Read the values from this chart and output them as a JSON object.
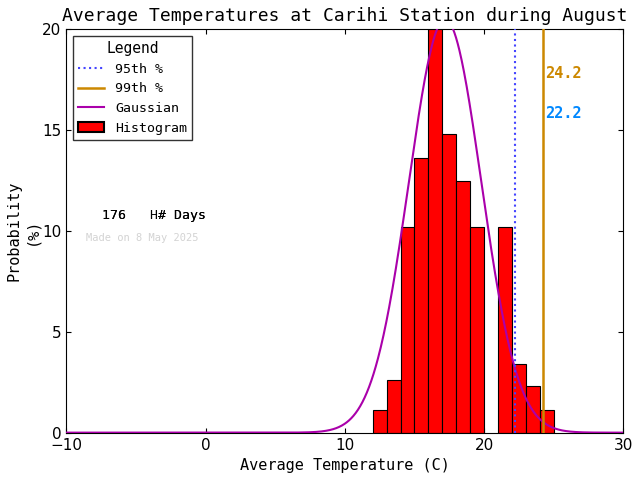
{
  "title": "Average Temperatures at Carihi Station during August",
  "xlabel": "Average Temperature (C)",
  "ylabel": "Probability\n(%)",
  "xlim": [
    -10,
    30
  ],
  "ylim": [
    0,
    20
  ],
  "xticks": [
    -10,
    0,
    10,
    20,
    30
  ],
  "yticks": [
    0,
    5,
    10,
    15,
    20
  ],
  "bin_edges": [
    12,
    13,
    14,
    15,
    16,
    17,
    18,
    19,
    20,
    21,
    22,
    23,
    24,
    25
  ],
  "bar_heights": [
    1.1,
    2.6,
    10.2,
    13.6,
    20.5,
    14.8,
    12.5,
    10.2,
    0.0,
    10.2,
    3.4,
    2.3,
    1.1
  ],
  "bar_color": "#ff0000",
  "bar_edgecolor": "#000000",
  "gauss_mean": 17.2,
  "gauss_std": 2.6,
  "gauss_scale": 20.5,
  "gauss_color": "#aa00aa",
  "percentile_95": 22.2,
  "percentile_99": 24.2,
  "p95_color": "#4444ff",
  "p95_linestyle": "dotted",
  "p99_color": "#cc8800",
  "p99_linestyle": "solid",
  "p95_label_color": "#0088ff",
  "p99_label_color": "#cc8800",
  "n_days": 176,
  "watermark": "Made on 8 May 2025",
  "legend_title": "Legend",
  "legend_95_label": "95th %",
  "legend_99_label": "99th %",
  "legend_gauss_label": "Gaussian",
  "legend_hist_label": "Histogram",
  "background_color": "#ffffff",
  "title_fontsize": 13,
  "axis_fontsize": 11,
  "tick_fontsize": 11
}
